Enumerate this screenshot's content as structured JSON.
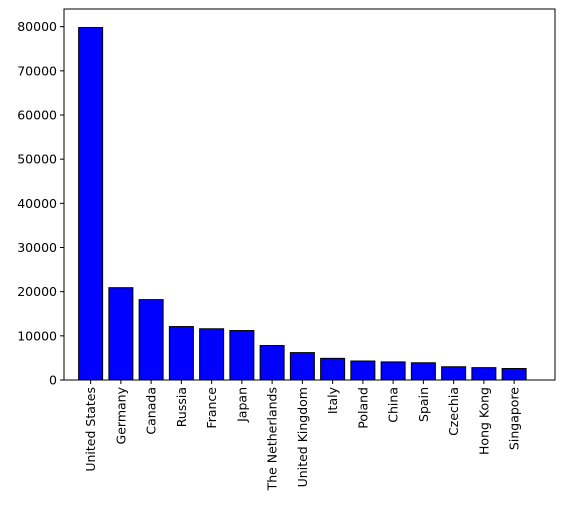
{
  "chart_data": {
    "type": "bar",
    "title": "",
    "xlabel": "",
    "ylabel": "",
    "categories": [
      "United States",
      "Germany",
      "Canada",
      "Russia",
      "France",
      "Japan",
      "The Netherlands",
      "United Kingdom",
      "Italy",
      "Poland",
      "China",
      "Spain",
      "Czechia",
      "Hong Kong",
      "Singapore"
    ],
    "values": [
      79800,
      20900,
      18200,
      12100,
      11600,
      11200,
      7800,
      6200,
      4900,
      4300,
      4100,
      3900,
      3000,
      2800,
      2600
    ],
    "ylim": [
      0,
      84000
    ],
    "yticks": [
      0,
      10000,
      20000,
      30000,
      40000,
      50000,
      60000,
      70000,
      80000
    ],
    "grid": false,
    "legend": "none",
    "colors": {
      "bar_fill": "#0000ff",
      "bar_edge": "#000000"
    }
  }
}
